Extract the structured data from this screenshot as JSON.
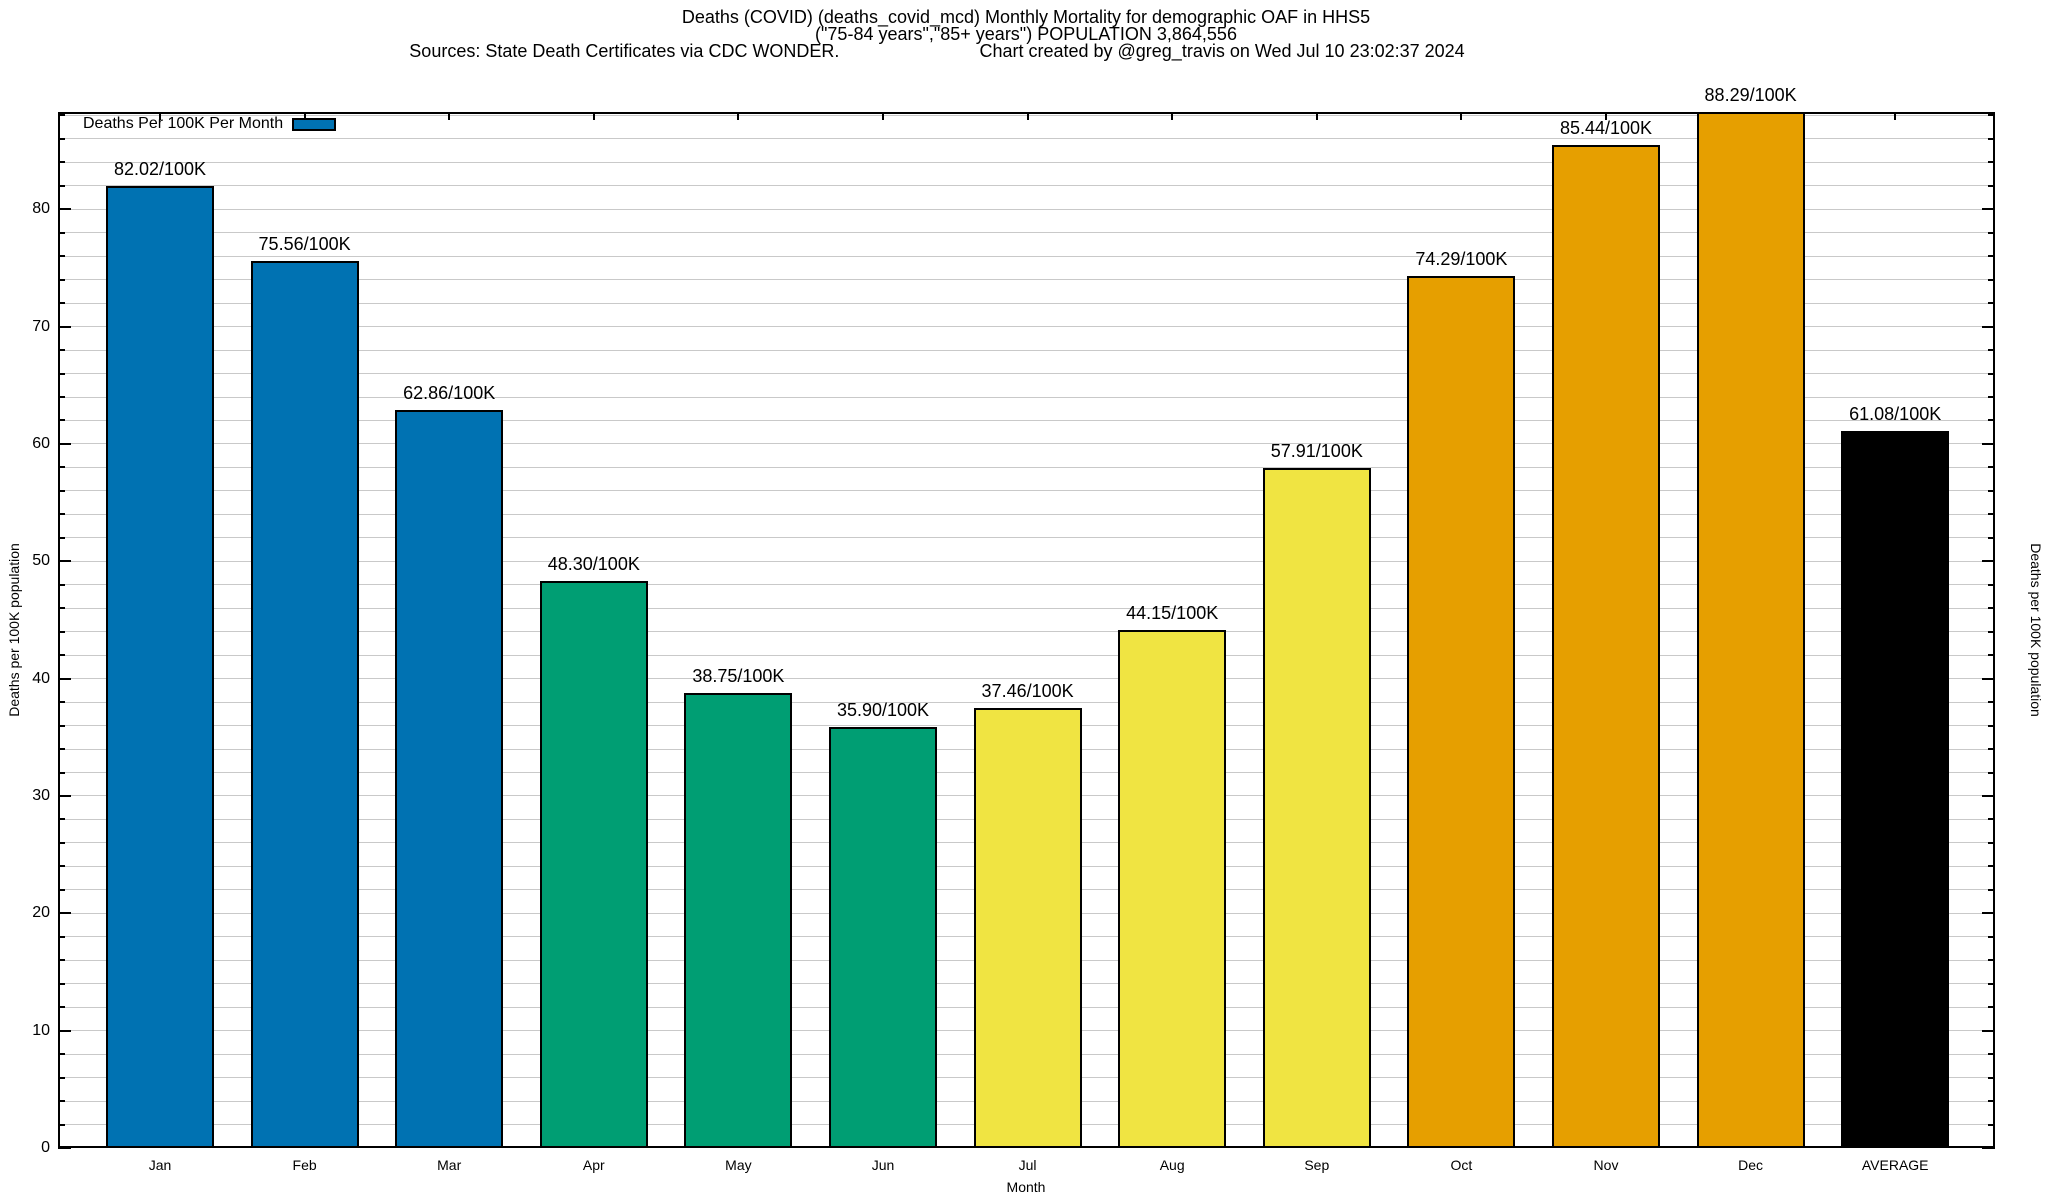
{
  "title": {
    "line1": "Deaths (COVID) (deaths_covid_mcd) Monthly Mortality for demographic OAF in HHS5",
    "line2": "(\"75-84 years\",\"85+ years\") POPULATION 3,864,556",
    "line3_left": "Sources: State Death Certificates via CDC WONDER.",
    "line3_right": "Chart created by @greg_travis on Wed Jul 10 23:02:37 2024"
  },
  "legend": {
    "label": "Deaths Per 100K Per Month",
    "swatch_color": "#0072B2",
    "position": "top-left"
  },
  "axes": {
    "y_left_label": "Deaths per 100K population",
    "y_right_label": "Deaths per 100K population",
    "x_label": "Month"
  },
  "chart_data": {
    "type": "bar",
    "title": "Deaths (COVID) (deaths_covid_mcd) Monthly Mortality for demographic OAF in HHS5 (\"75-84 years\",\"85+ years\") POPULATION 3,864,556",
    "categories": [
      "Jan",
      "Feb",
      "Mar",
      "Apr",
      "May",
      "Jun",
      "Jul",
      "Aug",
      "Sep",
      "Oct",
      "Nov",
      "Dec",
      "AVERAGE"
    ],
    "values": [
      82.02,
      75.56,
      62.86,
      48.3,
      38.75,
      35.9,
      37.46,
      44.15,
      57.91,
      74.29,
      85.44,
      88.29,
      61.08
    ],
    "value_labels": [
      "82.02/100K",
      "75.56/100K",
      "62.86/100K",
      "48.30/100K",
      "38.75/100K",
      "35.90/100K",
      "37.46/100K",
      "44.15/100K",
      "57.91/100K",
      "74.29/100K",
      "85.44/100K",
      "88.29/100K",
      "61.08/100K"
    ],
    "bar_colors": [
      "#0072B2",
      "#0072B2",
      "#0072B2",
      "#009E73",
      "#009E73",
      "#009E73",
      "#F0E442",
      "#F0E442",
      "#F0E442",
      "#E69F00",
      "#E69F00",
      "#E69F00",
      "#000000"
    ],
    "xlabel": "Month",
    "ylabel": "Deaths per 100K population",
    "ylim": [
      0,
      88.29
    ],
    "y_major_ticks": [
      0,
      10,
      20,
      30,
      40,
      50,
      60,
      70,
      80
    ],
    "y_minor_step": 2,
    "grid": true,
    "grid_color": "#c9c9c9",
    "legend_position": "top-left"
  }
}
